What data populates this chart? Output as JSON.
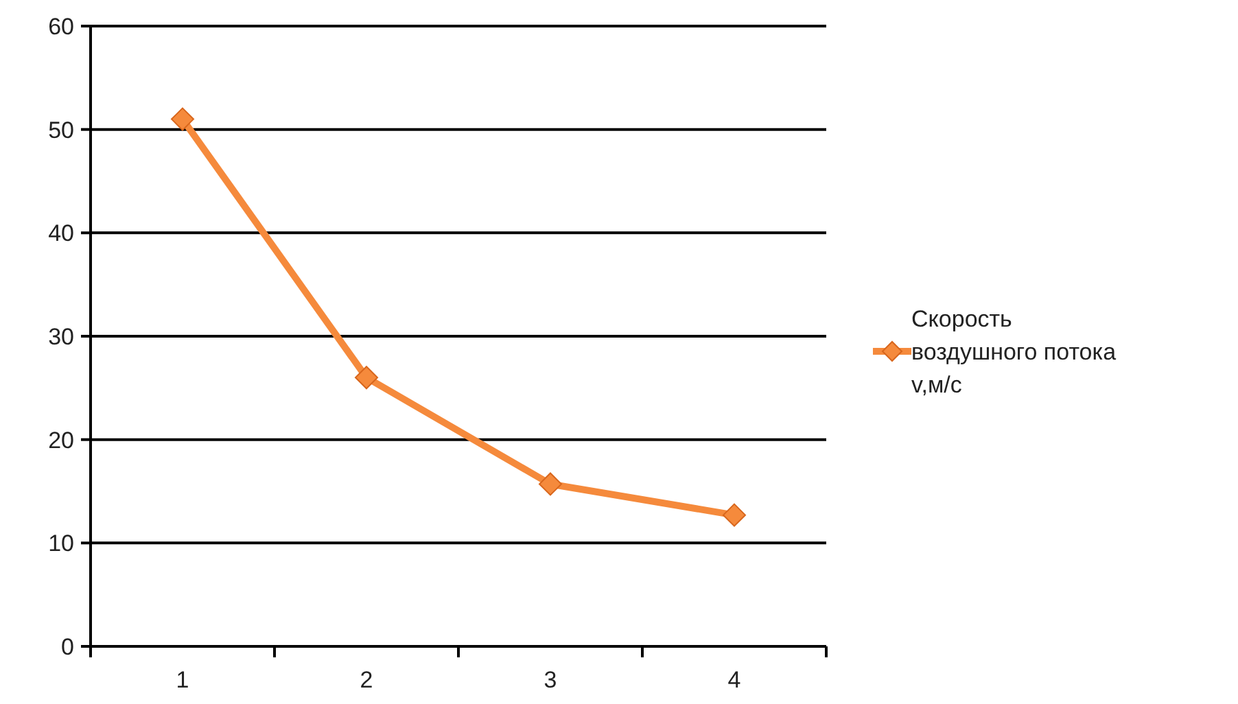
{
  "chart_data": {
    "type": "line",
    "categories": [
      "1",
      "2",
      "3",
      "4"
    ],
    "series": [
      {
        "name": "Скорость воздушного потока v,м/с",
        "color": "#f58a3c",
        "values": [
          51,
          26,
          15.7,
          12.7
        ]
      }
    ],
    "ylim": [
      0,
      60
    ],
    "yticks": [
      0,
      10,
      20,
      30,
      40,
      50,
      60
    ],
    "grid": "y",
    "legend": "right",
    "marker": "diamond",
    "line_style": "solid"
  }
}
